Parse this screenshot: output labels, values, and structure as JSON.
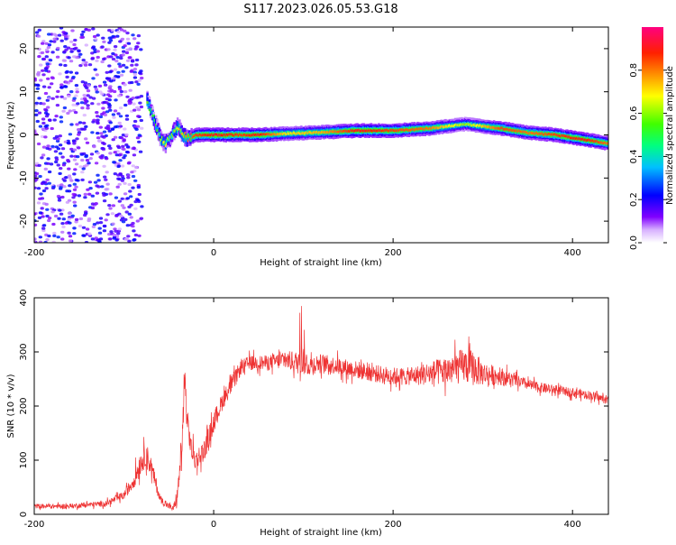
{
  "figure": {
    "title": "S117.2023.026.05.53.G18"
  },
  "chart_data": [
    {
      "type": "heatmap",
      "xlabel": "Height of straight line (km)",
      "ylabel": "Frequency (Hz)",
      "xlim": [
        -200,
        440
      ],
      "ylim": [
        -25,
        25
      ],
      "x_ticks": [
        -200,
        0,
        200,
        400
      ],
      "y_ticks": [
        -20,
        -10,
        0,
        10,
        20
      ],
      "colorbar": {
        "label": "Normalized spectral amplitude",
        "range": [
          0,
          1
        ],
        "ticks": [
          0.0,
          0.2,
          0.4,
          0.6,
          0.8
        ],
        "tick_labels": [
          "0.0",
          "0.2",
          "0.4",
          "0.6",
          "0.8"
        ],
        "colormap": [
          "#ffffff",
          "#8000ff",
          "#0000ff",
          "#00ffff",
          "#00ff00",
          "#ffff00",
          "#ff8000",
          "#ff0000",
          "#ff0080"
        ]
      },
      "ridge": {
        "description_of_trace": "main tone frequency vs height",
        "x": [
          -75,
          -70,
          -65,
          -60,
          -55,
          -50,
          -45,
          -40,
          -35,
          -30,
          -20,
          0,
          30,
          50,
          80,
          120,
          160,
          200,
          240,
          280,
          320,
          350,
          380,
          410,
          440
        ],
        "y": [
          8,
          5,
          2,
          -1,
          -2,
          -1,
          1,
          2,
          0,
          -1,
          0,
          0,
          0,
          0,
          0.3,
          0.6,
          1,
          1,
          1.5,
          2.5,
          1.5,
          0.5,
          0,
          -1,
          -2
        ],
        "amplitude": [
          0.6,
          0.5,
          0.55,
          0.6,
          0.7,
          0.6,
          0.6,
          0.7,
          0.75,
          0.8,
          0.85,
          0.9,
          0.85,
          0.9,
          0.7,
          0.75,
          0.9,
          0.85,
          0.8,
          0.6,
          0.85,
          0.8,
          0.85,
          0.9,
          0.8
        ]
      },
      "noise_region": {
        "x_range": [
          -200,
          -80
        ],
        "y_range": [
          -25,
          25
        ],
        "amplitude_range": [
          0.05,
          0.25
        ]
      }
    },
    {
      "type": "line",
      "xlabel": "Height of straight line (km)",
      "ylabel": "SNR (10 * v/v)",
      "xlim": [
        -200,
        440
      ],
      "ylim": [
        0,
        400
      ],
      "x_ticks": [
        -200,
        0,
        200,
        400
      ],
      "y_ticks": [
        0,
        100,
        200,
        300,
        400
      ],
      "color": "#ee3333",
      "series": [
        {
          "x": [
            -200,
            -160,
            -120,
            -100,
            -90,
            -85,
            -80,
            -75,
            -70,
            -65,
            -60,
            -55,
            -50,
            -45,
            -40,
            -35,
            -32,
            -30,
            -25,
            -20,
            -10,
            0,
            10,
            20,
            30,
            40,
            60,
            80,
            95,
            100,
            105,
            120,
            150,
            180,
            200,
            220,
            240,
            260,
            280,
            290,
            300,
            320,
            340,
            360,
            380,
            400,
            420,
            440
          ],
          "y": [
            15,
            15,
            20,
            35,
            60,
            80,
            100,
            110,
            90,
            60,
            30,
            20,
            15,
            10,
            40,
            140,
            250,
            180,
            120,
            100,
            120,
            170,
            210,
            240,
            270,
            280,
            280,
            285,
            280,
            290,
            275,
            280,
            270,
            260,
            255,
            255,
            260,
            265,
            275,
            270,
            260,
            255,
            245,
            235,
            230,
            225,
            220,
            210
          ],
          "noise_amplitude": [
            8,
            8,
            10,
            14,
            25,
            40,
            40,
            40,
            35,
            25,
            15,
            10,
            10,
            10,
            30,
            60,
            50,
            40,
            40,
            35,
            35,
            35,
            30,
            30,
            25,
            25,
            25,
            30,
            40,
            60,
            35,
            30,
            30,
            30,
            30,
            30,
            40,
            50,
            60,
            60,
            40,
            30,
            20,
            18,
            16,
            15,
            15,
            14
          ]
        }
      ]
    }
  ]
}
